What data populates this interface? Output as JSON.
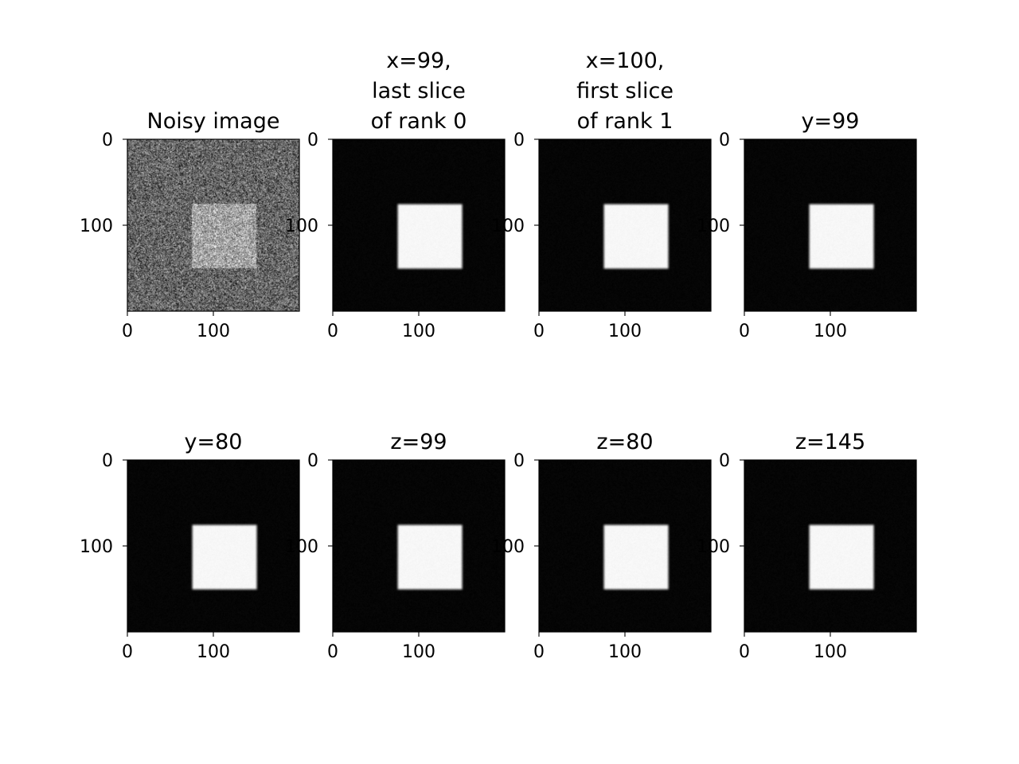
{
  "chart_data": [
    {
      "type": "heatmap",
      "title_lines": [
        "Noisy image"
      ],
      "style": "noisy",
      "xlim": [
        0,
        200
      ],
      "ylim": [
        0,
        200
      ],
      "xticks": [
        0,
        100
      ],
      "yticks": [
        0,
        100
      ],
      "square": {
        "x0": 75,
        "x1": 150,
        "y0": 75,
        "y1": 150
      },
      "intensity": {
        "background": 0.4,
        "square": 0.65
      }
    },
    {
      "type": "heatmap",
      "title_lines": [
        "x=99,",
        "last slice",
        "of rank 0"
      ],
      "style": "denoised",
      "xlim": [
        0,
        200
      ],
      "ylim": [
        0,
        200
      ],
      "xticks": [
        0,
        100
      ],
      "yticks": [
        0,
        100
      ],
      "square": {
        "x0": 75,
        "x1": 150,
        "y0": 75,
        "y1": 150
      },
      "intensity": {
        "background": 0.02,
        "square": 0.97
      }
    },
    {
      "type": "heatmap",
      "title_lines": [
        "x=100,",
        "first slice",
        "of rank 1"
      ],
      "style": "denoised",
      "xlim": [
        0,
        200
      ],
      "ylim": [
        0,
        200
      ],
      "xticks": [
        0,
        100
      ],
      "yticks": [
        0,
        100
      ],
      "square": {
        "x0": 75,
        "x1": 150,
        "y0": 75,
        "y1": 150
      },
      "intensity": {
        "background": 0.02,
        "square": 0.97
      }
    },
    {
      "type": "heatmap",
      "title_lines": [
        "y=99"
      ],
      "style": "denoised",
      "xlim": [
        0,
        200
      ],
      "ylim": [
        0,
        200
      ],
      "xticks": [
        0,
        100
      ],
      "yticks": [
        0,
        100
      ],
      "square": {
        "x0": 75,
        "x1": 150,
        "y0": 75,
        "y1": 150
      },
      "intensity": {
        "background": 0.02,
        "square": 0.97
      }
    },
    {
      "type": "heatmap",
      "title_lines": [
        "y=80"
      ],
      "style": "denoised",
      "xlim": [
        0,
        200
      ],
      "ylim": [
        0,
        200
      ],
      "xticks": [
        0,
        100
      ],
      "yticks": [
        0,
        100
      ],
      "square": {
        "x0": 75,
        "x1": 150,
        "y0": 75,
        "y1": 150
      },
      "intensity": {
        "background": 0.02,
        "square": 0.97
      }
    },
    {
      "type": "heatmap",
      "title_lines": [
        "z=99"
      ],
      "style": "denoised",
      "xlim": [
        0,
        200
      ],
      "ylim": [
        0,
        200
      ],
      "xticks": [
        0,
        100
      ],
      "yticks": [
        0,
        100
      ],
      "square": {
        "x0": 75,
        "x1": 150,
        "y0": 75,
        "y1": 150
      },
      "intensity": {
        "background": 0.02,
        "square": 0.97
      }
    },
    {
      "type": "heatmap",
      "title_lines": [
        "z=80"
      ],
      "style": "denoised",
      "xlim": [
        0,
        200
      ],
      "ylim": [
        0,
        200
      ],
      "xticks": [
        0,
        100
      ],
      "yticks": [
        0,
        100
      ],
      "square": {
        "x0": 75,
        "x1": 150,
        "y0": 75,
        "y1": 150
      },
      "intensity": {
        "background": 0.02,
        "square": 0.97
      }
    },
    {
      "type": "heatmap",
      "title_lines": [
        "z=145"
      ],
      "style": "denoised",
      "xlim": [
        0,
        200
      ],
      "ylim": [
        0,
        200
      ],
      "xticks": [
        0,
        100
      ],
      "yticks": [
        0,
        100
      ],
      "square": {
        "x0": 75,
        "x1": 150,
        "y0": 75,
        "y1": 150
      },
      "intensity": {
        "background": 0.02,
        "square": 0.97
      }
    }
  ]
}
